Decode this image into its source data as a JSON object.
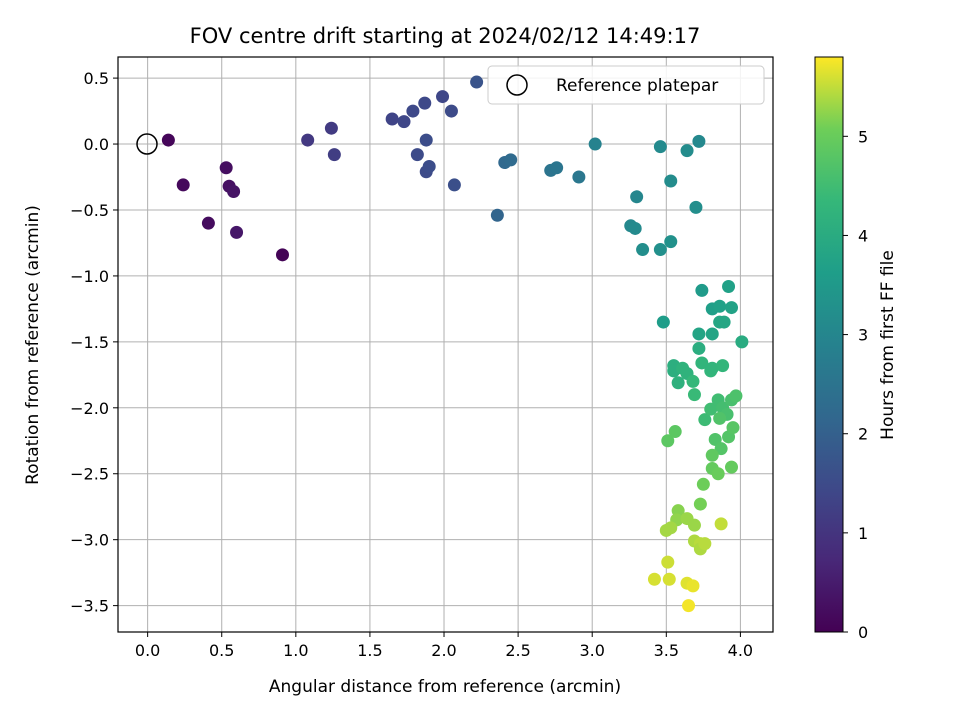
{
  "chart_data": {
    "type": "scatter",
    "title": "FOV centre drift starting at 2024/02/12 14:49:17",
    "xlabel": "Angular distance from reference (arcmin)",
    "ylabel": "Rotation from reference (arcmin)",
    "xlim": [
      -0.2,
      4.22
    ],
    "ylim": [
      -3.7,
      0.66
    ],
    "x_ticks": [
      0.0,
      0.5,
      1.0,
      1.5,
      2.0,
      2.5,
      3.0,
      3.5,
      4.0
    ],
    "x_tick_labels": [
      "0.0",
      "0.5",
      "1.0",
      "1.5",
      "2.0",
      "2.5",
      "3.0",
      "3.5",
      "4.0"
    ],
    "y_ticks": [
      0.5,
      0.0,
      -0.5,
      -1.0,
      -1.5,
      -2.0,
      -2.5,
      -3.0,
      -3.5
    ],
    "y_tick_labels": [
      "0.5",
      "0.0",
      "−0.5",
      "−1.0",
      "−1.5",
      "−2.0",
      "−2.5",
      "−3.0",
      "−3.5"
    ],
    "grid": true,
    "legend": {
      "position": "top-right",
      "entries": [
        "Reference platepar"
      ]
    },
    "colorbar": {
      "label": "Hours from first FF file",
      "range": [
        0,
        5.8
      ],
      "ticks": [
        0,
        1,
        2,
        3,
        4,
        5
      ],
      "tick_labels": [
        "0",
        "1",
        "2",
        "3",
        "4",
        "5"
      ],
      "colormap": "viridis"
    },
    "reference_point": {
      "x": 0.0,
      "y": 0.0
    },
    "series": [
      {
        "points": [
          {
            "x": 0.14,
            "y": 0.03,
            "h": 0.1
          },
          {
            "x": 0.24,
            "y": -0.31,
            "h": 0.15
          },
          {
            "x": 0.41,
            "y": -0.6,
            "h": 0.2
          },
          {
            "x": 0.53,
            "y": -0.18,
            "h": 0.25
          },
          {
            "x": 0.55,
            "y": -0.32,
            "h": 0.3
          },
          {
            "x": 0.58,
            "y": -0.36,
            "h": 0.35
          },
          {
            "x": 0.6,
            "y": -0.67,
            "h": 0.4
          },
          {
            "x": 0.91,
            "y": -0.84,
            "h": 0.05
          },
          {
            "x": 1.08,
            "y": 0.03,
            "h": 1.1
          },
          {
            "x": 1.24,
            "y": 0.12,
            "h": 1.15
          },
          {
            "x": 1.26,
            "y": -0.08,
            "h": 1.2
          },
          {
            "x": 1.65,
            "y": 0.19,
            "h": 1.35
          },
          {
            "x": 1.73,
            "y": 0.17,
            "h": 1.4
          },
          {
            "x": 1.79,
            "y": 0.25,
            "h": 1.45
          },
          {
            "x": 1.82,
            "y": -0.08,
            "h": 1.5
          },
          {
            "x": 1.87,
            "y": 0.31,
            "h": 1.45
          },
          {
            "x": 1.88,
            "y": 0.03,
            "h": 1.55
          },
          {
            "x": 1.88,
            "y": -0.21,
            "h": 1.5
          },
          {
            "x": 1.9,
            "y": -0.17,
            "h": 1.55
          },
          {
            "x": 1.99,
            "y": 0.36,
            "h": 1.4
          },
          {
            "x": 2.05,
            "y": 0.25,
            "h": 1.5
          },
          {
            "x": 2.07,
            "y": -0.31,
            "h": 1.6
          },
          {
            "x": 2.22,
            "y": 0.47,
            "h": 1.7
          },
          {
            "x": 2.36,
            "y": -0.54,
            "h": 2.1
          },
          {
            "x": 2.41,
            "y": -0.14,
            "h": 2.2
          },
          {
            "x": 2.45,
            "y": -0.12,
            "h": 2.25
          },
          {
            "x": 2.72,
            "y": -0.2,
            "h": 2.5
          },
          {
            "x": 2.76,
            "y": -0.18,
            "h": 2.55
          },
          {
            "x": 2.91,
            "y": -0.25,
            "h": 2.6
          },
          {
            "x": 3.02,
            "y": 0.0,
            "h": 2.9
          },
          {
            "x": 3.26,
            "y": -0.62,
            "h": 3.05
          },
          {
            "x": 3.29,
            "y": -0.64,
            "h": 3.1
          },
          {
            "x": 3.3,
            "y": -0.4,
            "h": 3.0
          },
          {
            "x": 3.34,
            "y": -0.8,
            "h": 3.2
          },
          {
            "x": 3.46,
            "y": -0.02,
            "h": 3.1
          },
          {
            "x": 3.46,
            "y": -0.8,
            "h": 3.25
          },
          {
            "x": 3.53,
            "y": -0.28,
            "h": 3.15
          },
          {
            "x": 3.53,
            "y": -0.74,
            "h": 3.3
          },
          {
            "x": 3.64,
            "y": -0.05,
            "h": 3.15
          },
          {
            "x": 3.7,
            "y": -0.48,
            "h": 3.2
          },
          {
            "x": 3.72,
            "y": 0.02,
            "h": 3.05
          },
          {
            "x": 3.48,
            "y": -1.35,
            "h": 3.6
          },
          {
            "x": 3.74,
            "y": -1.11,
            "h": 3.55
          },
          {
            "x": 3.81,
            "y": -1.25,
            "h": 3.65
          },
          {
            "x": 3.86,
            "y": -1.23,
            "h": 3.7
          },
          {
            "x": 3.92,
            "y": -1.08,
            "h": 3.7
          },
          {
            "x": 3.94,
            "y": -1.24,
            "h": 3.75
          },
          {
            "x": 3.72,
            "y": -1.44,
            "h": 3.8
          },
          {
            "x": 3.81,
            "y": -1.44,
            "h": 3.8
          },
          {
            "x": 3.86,
            "y": -1.35,
            "h": 3.85
          },
          {
            "x": 3.89,
            "y": -1.35,
            "h": 3.85
          },
          {
            "x": 4.01,
            "y": -1.5,
            "h": 4.0
          },
          {
            "x": 3.72,
            "y": -1.55,
            "h": 4.05
          },
          {
            "x": 3.55,
            "y": -1.68,
            "h": 4.1
          },
          {
            "x": 3.55,
            "y": -1.72,
            "h": 4.1
          },
          {
            "x": 3.58,
            "y": -1.81,
            "h": 4.15
          },
          {
            "x": 3.61,
            "y": -1.7,
            "h": 4.2
          },
          {
            "x": 3.64,
            "y": -1.74,
            "h": 4.2
          },
          {
            "x": 3.74,
            "y": -1.66,
            "h": 4.25
          },
          {
            "x": 3.8,
            "y": -1.72,
            "h": 4.3
          },
          {
            "x": 3.81,
            "y": -1.7,
            "h": 4.25
          },
          {
            "x": 3.88,
            "y": -1.68,
            "h": 4.3
          },
          {
            "x": 3.68,
            "y": -1.8,
            "h": 4.35
          },
          {
            "x": 3.69,
            "y": -1.9,
            "h": 4.4
          },
          {
            "x": 3.76,
            "y": -2.09,
            "h": 4.45
          },
          {
            "x": 3.8,
            "y": -2.01,
            "h": 4.5
          },
          {
            "x": 3.85,
            "y": -1.94,
            "h": 4.5
          },
          {
            "x": 3.88,
            "y": -2.0,
            "h": 4.55
          },
          {
            "x": 3.91,
            "y": -2.05,
            "h": 4.6
          },
          {
            "x": 3.94,
            "y": -1.94,
            "h": 4.6
          },
          {
            "x": 3.97,
            "y": -1.91,
            "h": 4.65
          },
          {
            "x": 3.83,
            "y": -2.24,
            "h": 4.7
          },
          {
            "x": 3.86,
            "y": -2.08,
            "h": 4.7
          },
          {
            "x": 3.87,
            "y": -2.31,
            "h": 4.75
          },
          {
            "x": 3.92,
            "y": -2.22,
            "h": 4.75
          },
          {
            "x": 3.95,
            "y": -2.15,
            "h": 4.8
          },
          {
            "x": 3.51,
            "y": -2.25,
            "h": 4.85
          },
          {
            "x": 3.56,
            "y": -2.18,
            "h": 4.85
          },
          {
            "x": 3.81,
            "y": -2.36,
            "h": 4.9
          },
          {
            "x": 3.81,
            "y": -2.46,
            "h": 4.95
          },
          {
            "x": 3.85,
            "y": -2.5,
            "h": 5.0
          },
          {
            "x": 3.94,
            "y": -2.45,
            "h": 4.95
          },
          {
            "x": 3.75,
            "y": -2.58,
            "h": 5.05
          },
          {
            "x": 3.73,
            "y": -2.73,
            "h": 5.1
          },
          {
            "x": 3.58,
            "y": -2.78,
            "h": 5.2
          },
          {
            "x": 3.57,
            "y": -2.85,
            "h": 5.25
          },
          {
            "x": 3.64,
            "y": -2.84,
            "h": 5.3
          },
          {
            "x": 3.69,
            "y": -2.89,
            "h": 5.3
          },
          {
            "x": 3.5,
            "y": -2.93,
            "h": 5.35
          },
          {
            "x": 3.53,
            "y": -2.91,
            "h": 5.35
          },
          {
            "x": 3.69,
            "y": -3.01,
            "h": 5.4
          },
          {
            "x": 3.73,
            "y": -3.03,
            "h": 5.45
          },
          {
            "x": 3.73,
            "y": -3.07,
            "h": 5.4
          },
          {
            "x": 3.76,
            "y": -3.03,
            "h": 5.45
          },
          {
            "x": 3.87,
            "y": -2.88,
            "h": 5.5
          },
          {
            "x": 3.51,
            "y": -3.17,
            "h": 5.55
          },
          {
            "x": 3.42,
            "y": -3.3,
            "h": 5.6
          },
          {
            "x": 3.52,
            "y": -3.3,
            "h": 5.6
          },
          {
            "x": 3.64,
            "y": -3.33,
            "h": 5.65
          },
          {
            "x": 3.68,
            "y": -3.35,
            "h": 5.7
          },
          {
            "x": 3.65,
            "y": -3.5,
            "h": 5.75
          }
        ]
      }
    ]
  }
}
